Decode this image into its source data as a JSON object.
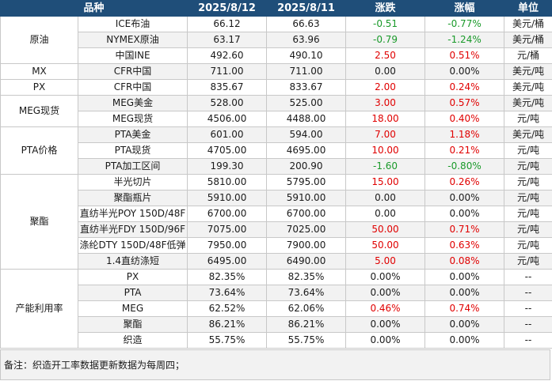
{
  "header": {
    "col_variety": "品种",
    "col_date1": "2025/8/12",
    "col_date2": "2025/8/11",
    "col_change": "涨跌",
    "col_change_pct": "涨幅",
    "col_unit": "单位"
  },
  "groups": [
    {
      "name": "原油",
      "rows": [
        {
          "item": "ICE布油",
          "v1": "66.12",
          "v2": "66.63",
          "chg": "-0.51",
          "pct": "-0.77%",
          "unit": "美元/桶",
          "dir": "down"
        },
        {
          "item": "NYMEX原油",
          "v1": "63.17",
          "v2": "63.96",
          "chg": "-0.79",
          "pct": "-1.24%",
          "unit": "美元/桶",
          "dir": "down"
        },
        {
          "item": "中国INE",
          "v1": "492.60",
          "v2": "490.10",
          "chg": "2.50",
          "pct": "0.51%",
          "unit": "元/桶",
          "dir": "up"
        }
      ]
    },
    {
      "name": "MX",
      "rows": [
        {
          "item": "CFR中国",
          "v1": "711.00",
          "v2": "711.00",
          "chg": "0.00",
          "pct": "0.00%",
          "unit": "美元/吨",
          "dir": "flat"
        }
      ]
    },
    {
      "name": "PX",
      "rows": [
        {
          "item": "CFR中国",
          "v1": "835.67",
          "v2": "833.67",
          "chg": "2.00",
          "pct": "0.24%",
          "unit": "美元/吨",
          "dir": "up"
        }
      ]
    },
    {
      "name": "MEG现货",
      "rows": [
        {
          "item": "MEG美金",
          "v1": "528.00",
          "v2": "525.00",
          "chg": "3.00",
          "pct": "0.57%",
          "unit": "美元/吨",
          "dir": "up"
        },
        {
          "item": "MEG现货",
          "v1": "4506.00",
          "v2": "4488.00",
          "chg": "18.00",
          "pct": "0.40%",
          "unit": "元/吨",
          "dir": "up"
        }
      ]
    },
    {
      "name": "PTA价格",
      "rows": [
        {
          "item": "PTA美金",
          "v1": "601.00",
          "v2": "594.00",
          "chg": "7.00",
          "pct": "1.18%",
          "unit": "美元/吨",
          "dir": "up"
        },
        {
          "item": "PTA现货",
          "v1": "4705.00",
          "v2": "4695.00",
          "chg": "10.00",
          "pct": "0.21%",
          "unit": "元/吨",
          "dir": "up"
        },
        {
          "item": "PTA加工区间",
          "v1": "199.30",
          "v2": "200.90",
          "chg": "-1.60",
          "pct": "-0.80%",
          "unit": "元/吨",
          "dir": "down"
        }
      ]
    },
    {
      "name": "聚酯",
      "rows": [
        {
          "item": "半光切片",
          "v1": "5810.00",
          "v2": "5795.00",
          "chg": "15.00",
          "pct": "0.26%",
          "unit": "元/吨",
          "dir": "up"
        },
        {
          "item": "聚酯瓶片",
          "v1": "5910.00",
          "v2": "5910.00",
          "chg": "0.00",
          "pct": "0.00%",
          "unit": "元/吨",
          "dir": "flat"
        },
        {
          "item": "直纺半光POY 150D/48F",
          "v1": "6700.00",
          "v2": "6700.00",
          "chg": "0.00",
          "pct": "0.00%",
          "unit": "元/吨",
          "dir": "flat"
        },
        {
          "item": "直纺半光FDY 150D/96F",
          "v1": "7075.00",
          "v2": "7025.00",
          "chg": "50.00",
          "pct": "0.71%",
          "unit": "元/吨",
          "dir": "up"
        },
        {
          "item": "涤纶DTY 150D/48F低弹",
          "v1": "7950.00",
          "v2": "7900.00",
          "chg": "50.00",
          "pct": "0.63%",
          "unit": "元/吨",
          "dir": "up"
        },
        {
          "item": "1.4直纺涤短",
          "v1": "6495.00",
          "v2": "6490.00",
          "chg": "5.00",
          "pct": "0.08%",
          "unit": "元/吨",
          "dir": "up"
        }
      ]
    },
    {
      "name": "产能利用率",
      "rows": [
        {
          "item": "PX",
          "v1": "82.35%",
          "v2": "82.35%",
          "chg": "0.00%",
          "pct": "0.00%",
          "unit": "--",
          "dir": "flat"
        },
        {
          "item": "PTA",
          "v1": "73.64%",
          "v2": "73.64%",
          "chg": "0.00%",
          "pct": "0.00%",
          "unit": "--",
          "dir": "flat"
        },
        {
          "item": "MEG",
          "v1": "62.52%",
          "v2": "62.06%",
          "chg": "0.46%",
          "pct": "0.74%",
          "unit": "--",
          "dir": "up"
        },
        {
          "item": "聚酯",
          "v1": "86.21%",
          "v2": "86.21%",
          "chg": "0.00%",
          "pct": "0.00%",
          "unit": "--",
          "dir": "flat"
        },
        {
          "item": "织造",
          "v1": "55.75%",
          "v2": "55.75%",
          "chg": "0.00%",
          "pct": "0.00%",
          "unit": "--",
          "dir": "flat"
        }
      ]
    }
  ],
  "note": "备注：织造开工率数据更新数据为每周四；",
  "colors": {
    "header_bg": "#1f4e79",
    "up": "#e00000",
    "down": "#1a9a2a",
    "stripe": "#f2f2f2"
  }
}
